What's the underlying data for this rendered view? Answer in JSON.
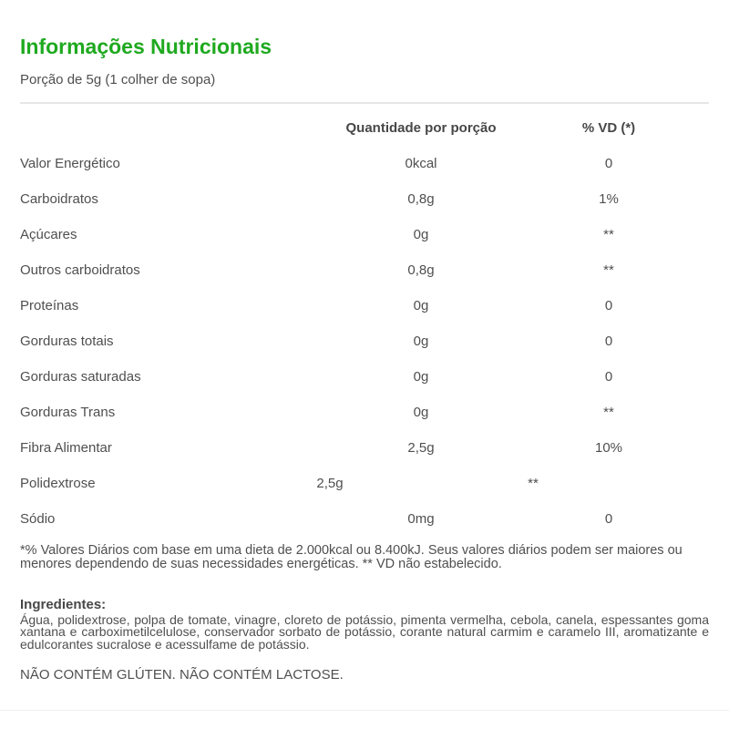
{
  "page": {
    "title": "Informações Nutricionais",
    "serving": "Porção de 5g (1 colher de sopa)"
  },
  "table": {
    "headers": {
      "quantity": "Quantidade por porção",
      "dv": "% VD (*)"
    },
    "rows": [
      {
        "label": "Valor Energético",
        "quantity": "0kcal",
        "dv": "0"
      },
      {
        "label": "Carboidratos",
        "quantity": "0,8g",
        "dv": "1%"
      },
      {
        "label": "Açúcares",
        "quantity": "0g",
        "dv": "**"
      },
      {
        "label": "Outros carboidratos",
        "quantity": "0,8g",
        "dv": "**"
      },
      {
        "label": "Proteínas",
        "quantity": "0g",
        "dv": "0"
      },
      {
        "label": "Gorduras totais",
        "quantity": "0g",
        "dv": "0"
      },
      {
        "label": "Gorduras saturadas",
        "quantity": "0g",
        "dv": "0"
      },
      {
        "label": "Gorduras Trans",
        "quantity": "0g",
        "dv": "**"
      },
      {
        "label": "Fibra Alimentar",
        "quantity": "2,5g",
        "dv": "10%"
      },
      {
        "label": "Polidextrose",
        "quantity": "2,5g",
        "dv": "**"
      },
      {
        "label": "Sódio",
        "quantity": "0mg",
        "dv": "0"
      }
    ]
  },
  "footnote": "*% Valores Diários com base em uma dieta de 2.000kcal ou 8.400kJ. Seus valores diários podem ser maiores ou menores dependendo de suas necessidades energéticas. ** VD não estabelecido.",
  "ingredients": {
    "heading": "Ingredientes:",
    "text": "Água, polidextrose, polpa de tomate, vinagre, cloreto de potássio, pimenta vermelha, cebola, canela, espessantes goma xantana e carboximetilcelulose, conservador sorbato de potássio, corante natural carmim e caramelo III, aromatizante e edulcorantes sucralose e acessulfame de potássio."
  },
  "claims": "NÃO CONTÉM GLÚTEN. NÃO CONTÉM LACTOSE.",
  "colors": {
    "accent_green": "#1fa91f",
    "body_text": "#4f4f4f",
    "divider": "#e6e6e6"
  }
}
